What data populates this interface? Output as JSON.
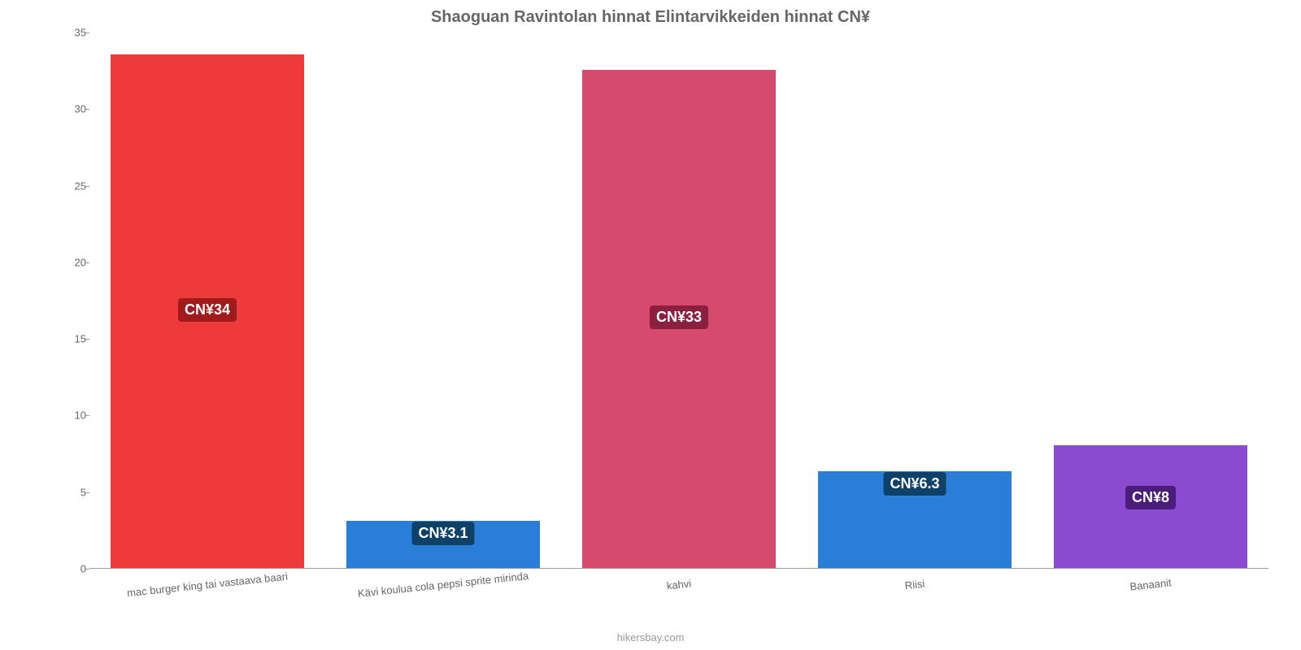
{
  "chart": {
    "type": "bar",
    "title": "Shaoguan Ravintolan hinnat Elintarvikkeiden hinnat CN¥",
    "title_fontsize": 20,
    "title_color": "#666666",
    "background_color": "#ffffff",
    "axis_color": "#999999",
    "tick_color": "#666666",
    "tick_fontsize": 13,
    "ylim": [
      0,
      35
    ],
    "ytick_step": 5,
    "yticks": [
      0,
      5,
      10,
      15,
      20,
      25,
      30,
      35
    ],
    "bar_width_ratio": 0.82,
    "label_fontsize": 18,
    "categories": [
      "mac burger king tai vastaava baari",
      "Kävi koulua cola pepsi sprite mirinda",
      "kahvi",
      "Riisi",
      "Banaanit"
    ],
    "values": [
      33.5,
      3.1,
      32.5,
      6.3,
      8
    ],
    "value_labels": [
      "CN¥34",
      "CN¥3.1",
      "CN¥33",
      "CN¥6.3",
      "CN¥8"
    ],
    "bar_colors": [
      "#ee3a3a",
      "#2b7ed8",
      "#d64a6e",
      "#2b7ed8",
      "#8a4bd1"
    ],
    "label_bg_colors": [
      "#a01b1b",
      "#0d4167",
      "#8a1f3f",
      "#0d4167",
      "#4a1d7a"
    ],
    "attribution": "hikersbay.com",
    "attribution_color": "#999999"
  }
}
